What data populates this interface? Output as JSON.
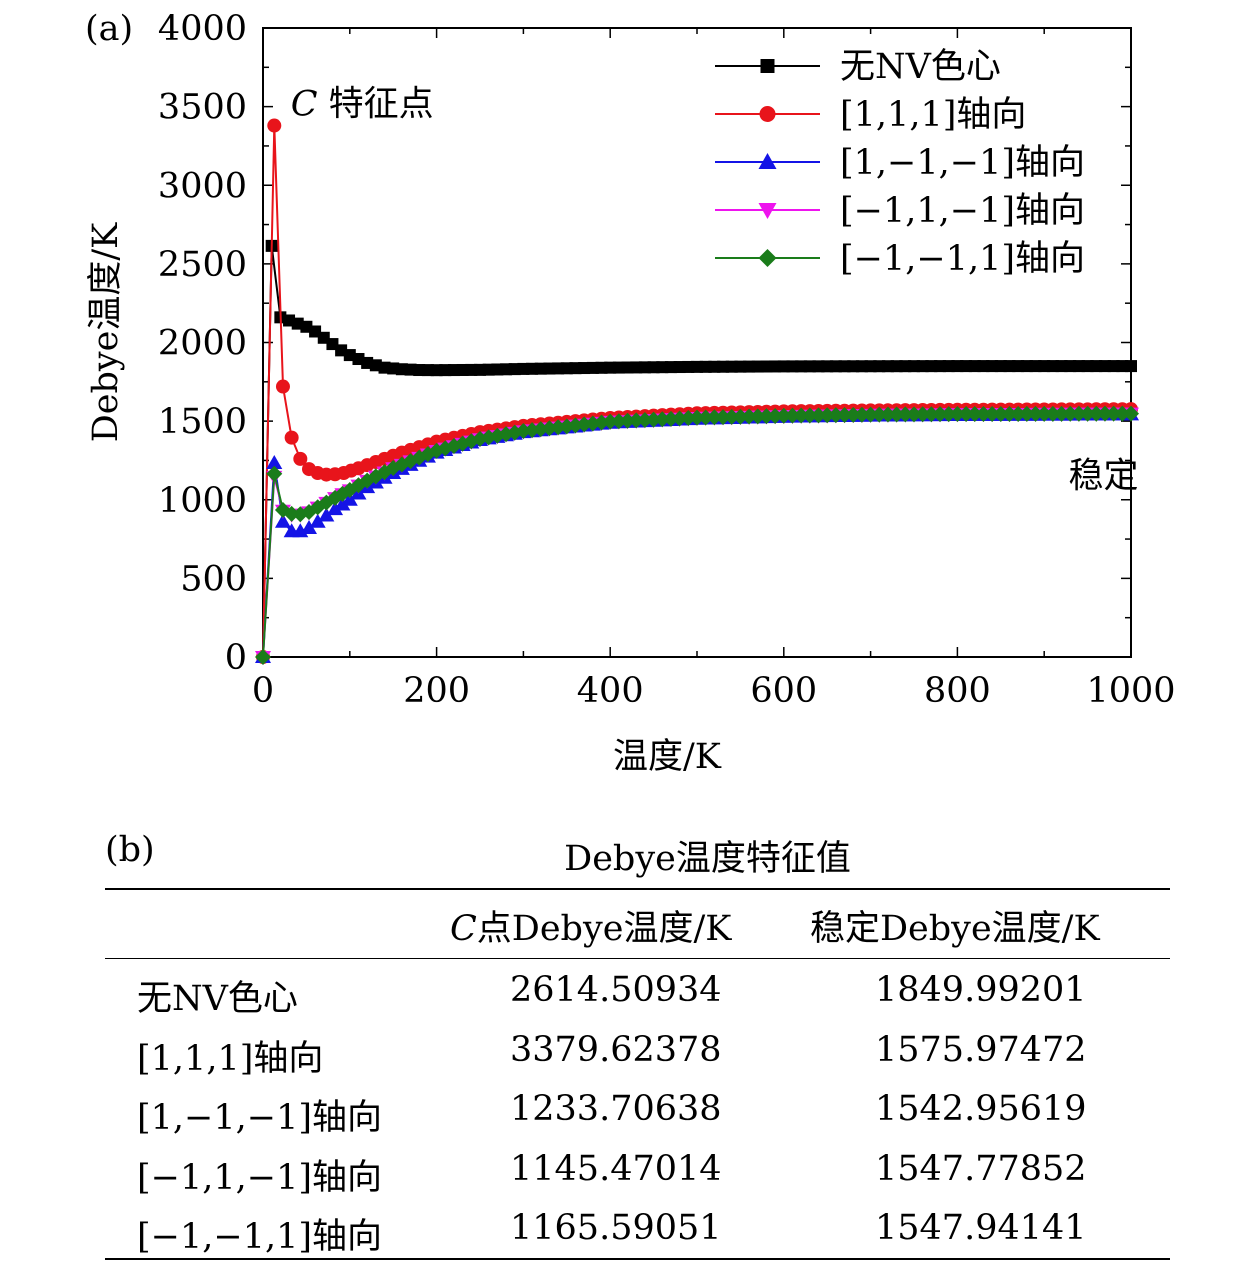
{
  "panel_a_label": "(a)",
  "panel_b_label": "(b)",
  "chart_data": {
    "type": "line",
    "title": "",
    "xlabel": "温度/K",
    "ylabel": "Debye温度/K",
    "xlim": [
      0,
      1000
    ],
    "ylim": [
      0,
      4000
    ],
    "xticks": [
      0,
      200,
      400,
      600,
      800,
      1000
    ],
    "yticks": [
      0,
      500,
      1000,
      1500,
      2000,
      2500,
      3000,
      3500,
      4000
    ],
    "grid": false,
    "legend_position": "top-right",
    "annotations": [
      {
        "text_italic": "C",
        "text": "特征点",
        "x": 32,
        "y": 3520
      },
      {
        "text": "稳定",
        "x": 905,
        "y": 1300
      }
    ],
    "series": [
      {
        "name": "无NV色心",
        "color": "#000000",
        "marker": "square",
        "points": [
          [
            0,
            0
          ],
          [
            10,
            2614.5
          ],
          [
            20,
            2160
          ],
          [
            30,
            2140
          ],
          [
            40,
            2120
          ],
          [
            50,
            2100
          ],
          [
            60,
            2070
          ],
          [
            70,
            2030
          ],
          [
            80,
            1990
          ],
          [
            90,
            1950
          ],
          [
            100,
            1920
          ],
          [
            120,
            1870
          ],
          [
            140,
            1840
          ],
          [
            160,
            1830
          ],
          [
            180,
            1825
          ],
          [
            200,
            1824
          ],
          [
            250,
            1826
          ],
          [
            300,
            1832
          ],
          [
            400,
            1840
          ],
          [
            500,
            1845
          ],
          [
            600,
            1848
          ],
          [
            700,
            1849
          ],
          [
            800,
            1850
          ],
          [
            900,
            1850
          ],
          [
            1000,
            1849.99
          ]
        ]
      },
      {
        "name": "[1,1,1]轴向",
        "color": "#e8141b",
        "marker": "circle",
        "points": [
          [
            0,
            0
          ],
          [
            13,
            3379.6
          ],
          [
            23,
            1720
          ],
          [
            33,
            1395
          ],
          [
            43,
            1260
          ],
          [
            53,
            1195
          ],
          [
            63,
            1170
          ],
          [
            73,
            1160
          ],
          [
            83,
            1162
          ],
          [
            93,
            1170
          ],
          [
            110,
            1200
          ],
          [
            130,
            1240
          ],
          [
            160,
            1300
          ],
          [
            200,
            1370
          ],
          [
            250,
            1430
          ],
          [
            300,
            1470
          ],
          [
            400,
            1520
          ],
          [
            500,
            1550
          ],
          [
            600,
            1562
          ],
          [
            700,
            1568
          ],
          [
            800,
            1572
          ],
          [
            900,
            1574
          ],
          [
            1000,
            1575.97
          ]
        ]
      },
      {
        "name": "[1,−1,−1]轴向",
        "color": "#1414e6",
        "marker": "triangle-up",
        "points": [
          [
            0,
            0
          ],
          [
            13,
            1233.7
          ],
          [
            23,
            860
          ],
          [
            33,
            800
          ],
          [
            43,
            800
          ],
          [
            53,
            820
          ],
          [
            63,
            860
          ],
          [
            73,
            900
          ],
          [
            83,
            940
          ],
          [
            100,
            1000
          ],
          [
            120,
            1080
          ],
          [
            150,
            1170
          ],
          [
            200,
            1300
          ],
          [
            250,
            1380
          ],
          [
            300,
            1430
          ],
          [
            400,
            1490
          ],
          [
            500,
            1515
          ],
          [
            600,
            1528
          ],
          [
            700,
            1535
          ],
          [
            800,
            1539
          ],
          [
            900,
            1541
          ],
          [
            1000,
            1542.96
          ]
        ]
      },
      {
        "name": "[−1,1,−1]轴向",
        "color": "#ee14ee",
        "marker": "triangle-down",
        "points": [
          [
            0,
            0
          ],
          [
            13,
            1145.5
          ],
          [
            23,
            930
          ],
          [
            33,
            905
          ],
          [
            43,
            905
          ],
          [
            53,
            920
          ],
          [
            63,
            950
          ],
          [
            73,
            980
          ],
          [
            83,
            1010
          ],
          [
            100,
            1060
          ],
          [
            120,
            1120
          ],
          [
            150,
            1200
          ],
          [
            200,
            1310
          ],
          [
            250,
            1385
          ],
          [
            300,
            1435
          ],
          [
            400,
            1495
          ],
          [
            500,
            1520
          ],
          [
            600,
            1532
          ],
          [
            700,
            1540
          ],
          [
            800,
            1544
          ],
          [
            900,
            1546
          ],
          [
            1000,
            1547.78
          ]
        ]
      },
      {
        "name": "[−1,−1,1]轴向",
        "color": "#1a7c1a",
        "marker": "diamond",
        "points": [
          [
            0,
            0
          ],
          [
            13,
            1165.6
          ],
          [
            23,
            935
          ],
          [
            33,
            910
          ],
          [
            43,
            908
          ],
          [
            53,
            922
          ],
          [
            63,
            952
          ],
          [
            73,
            982
          ],
          [
            83,
            1012
          ],
          [
            100,
            1062
          ],
          [
            120,
            1122
          ],
          [
            150,
            1202
          ],
          [
            200,
            1312
          ],
          [
            250,
            1387
          ],
          [
            300,
            1437
          ],
          [
            400,
            1497
          ],
          [
            500,
            1522
          ],
          [
            600,
            1534
          ],
          [
            700,
            1541
          ],
          [
            800,
            1545
          ],
          [
            900,
            1546
          ],
          [
            1000,
            1547.94
          ]
        ]
      }
    ]
  },
  "table": {
    "title": "Debye温度特征值",
    "header_col1_italic": "C",
    "header_col1_rest": "点Debye温度/K",
    "header_col2": "稳定Debye温度/K",
    "rows": [
      {
        "name": "无NV色心",
        "c": "2614.50934",
        "s": "1849.99201"
      },
      {
        "name": "[1,1,1]轴向",
        "c": "3379.62378",
        "s": "1575.97472"
      },
      {
        "name": "[1,−1,−1]轴向",
        "c": "1233.70638",
        "s": "1542.95619"
      },
      {
        "name": "[−1,1,−1]轴向",
        "c": "1145.47014",
        "s": "1547.77852"
      },
      {
        "name": "[−1,−1,1]轴向",
        "c": "1165.59051",
        "s": "1547.94141"
      }
    ]
  }
}
